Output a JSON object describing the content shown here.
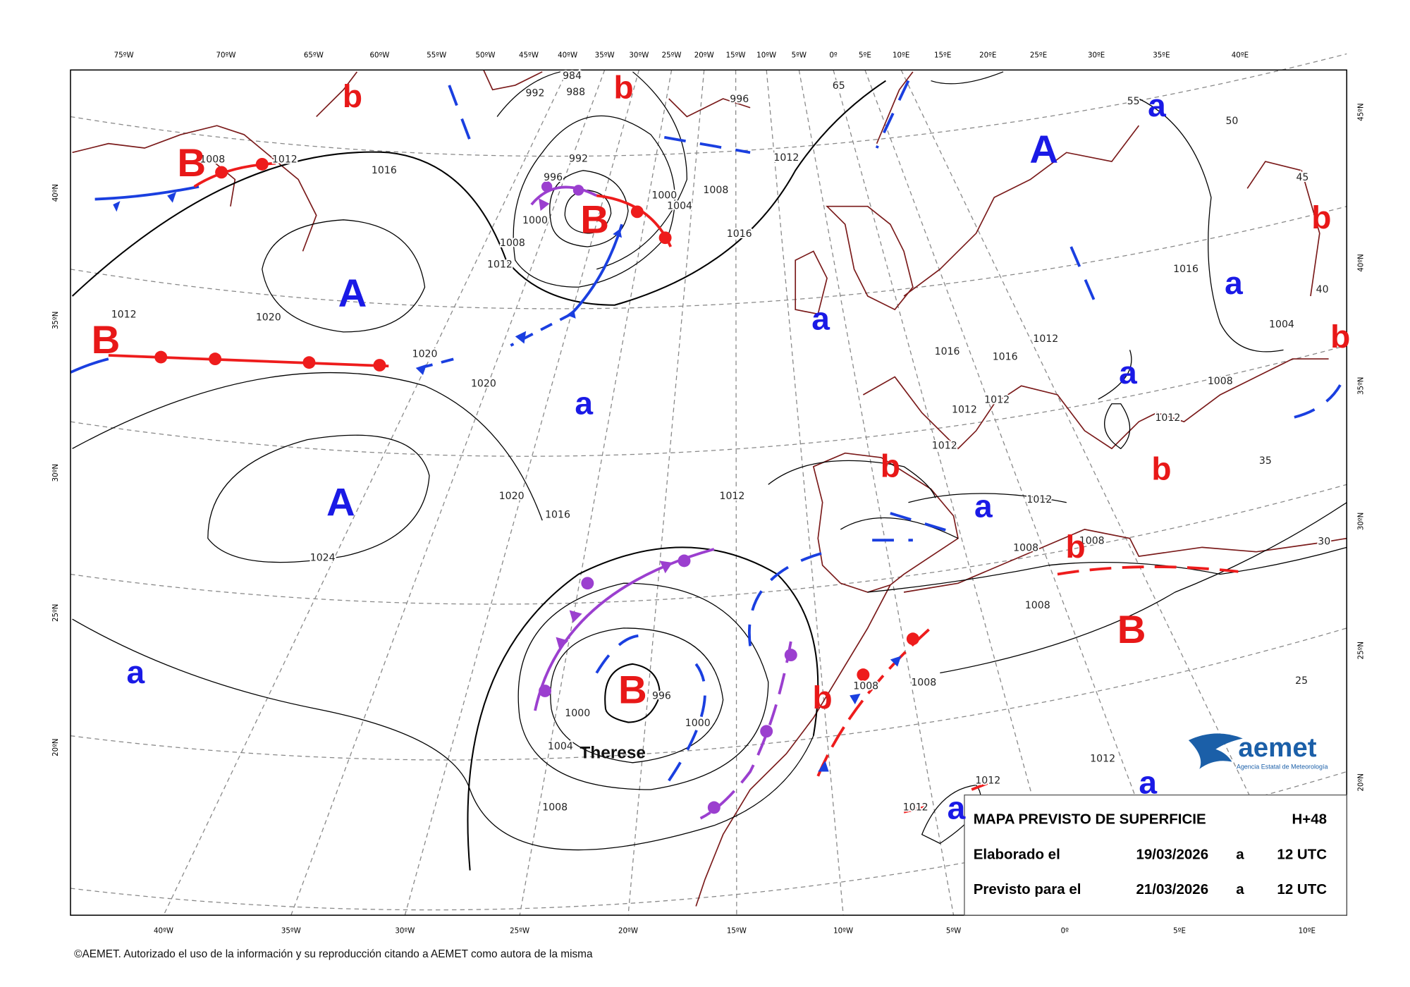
{
  "axis_labels": {
    "top": [
      "75ºW",
      "70ºW",
      "65ºW",
      "60ºW",
      "55ºW",
      "50ºW",
      "45ºW",
      "40ºW",
      "35ºW",
      "30ºW",
      "25ºW",
      "20ºW",
      "15ºW",
      "10ºW",
      "5ºW",
      "0º",
      "5ºE",
      "10ºE",
      "15ºE",
      "20ºE",
      "25ºE",
      "30ºE",
      "35ºE",
      "40ºE"
    ],
    "bottom": [
      "40ºW",
      "35ºW",
      "30ºW",
      "25ºW",
      "20ºW",
      "15ºW",
      "10ºW",
      "5ºW",
      "0º",
      "5ºE",
      "10ºE"
    ],
    "left": [
      "40ºN",
      "35ºN",
      "30ºN",
      "25ºN",
      "20ºN"
    ],
    "right": [
      "45ºN",
      "40ºN",
      "35ºN",
      "30ºN",
      "25ºN",
      "20ºN"
    ]
  },
  "pressure_centers": [
    "b",
    "b",
    "B",
    "B",
    "A",
    "B",
    "A",
    "a",
    "b",
    "a",
    "b",
    "a",
    "a",
    "a",
    "b",
    "b",
    "A",
    "a",
    "b",
    "B",
    "a",
    "B",
    "b",
    "a",
    "a"
  ],
  "isobar_labels": [
    1012,
    1008,
    1016,
    1012,
    1020,
    1020,
    1020,
    1012,
    1008,
    1000,
    996,
    992,
    988,
    984,
    992,
    1004,
    1000,
    1008,
    1016,
    1012,
    996,
    1012,
    1016,
    1020,
    1024,
    1000,
    1004,
    1008,
    1000,
    996,
    1016,
    1016,
    1012,
    1012,
    1012,
    1012,
    1012,
    1008,
    1008,
    1008,
    1008,
    1008,
    1012,
    1012,
    1012,
    1016,
    1012,
    1008,
    1004,
    65,
    55,
    50,
    45,
    40,
    35,
    30,
    25
  ],
  "storm_name": "Therese",
  "info_box": {
    "title": "MAPA PREVISTO DE SUPERFICIE",
    "lead": "H+48",
    "issued_label": "Elaborado el",
    "issued_date": "19/03/2026",
    "issued_at": "a",
    "issued_time": "12 UTC",
    "valid_label": "Previsto para el",
    "valid_date": "21/03/2026",
    "valid_at": "a",
    "valid_time": "12 UTC"
  },
  "logo": {
    "name": "aemet",
    "subtitle": "Agencia Estatal de Meteorología"
  },
  "footer": "©AEMET. Autorizado el uso de la información y su reproducción citando a AEMET como autora de la misma"
}
